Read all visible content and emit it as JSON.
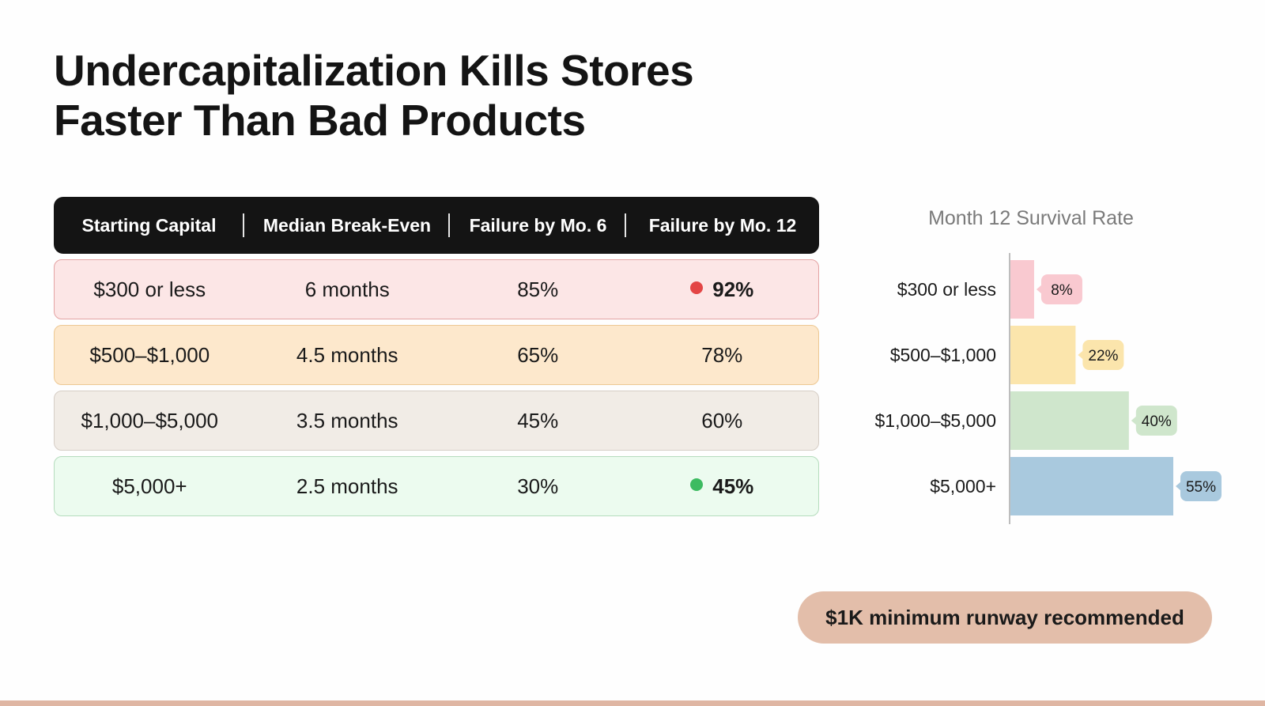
{
  "title_line1": "Undercapitalization Kills Stores",
  "title_line2": "Faster Than Bad Products",
  "table": {
    "headers": [
      "Starting Capital",
      "Median Break-Even",
      "Failure by Mo. 6",
      "Failure by Mo. 12"
    ],
    "rows": [
      {
        "capital": "$300 or less",
        "breakeven": "6 months",
        "fail6": "85%",
        "fail12": "92%",
        "marker": "red"
      },
      {
        "capital": "$500–$1,000",
        "breakeven": "4.5 months",
        "fail6": "65%",
        "fail12": "78%",
        "marker": ""
      },
      {
        "capital": "$1,000–$5,000",
        "breakeven": "3.5 months",
        "fail6": "45%",
        "fail12": "60%",
        "marker": ""
      },
      {
        "capital": "$5,000+",
        "breakeven": "2.5 months",
        "fail6": "30%",
        "fail12": "45%",
        "marker": "green"
      }
    ]
  },
  "colors": {
    "red_marker": "#e34545",
    "green_marker": "#3dbb61",
    "bars": [
      "#f9c9d0",
      "#fbe5ac",
      "#cfe6cc",
      "#a9c9de"
    ],
    "tags": [
      "#f9c9d0",
      "#fbe5ac",
      "#cfe6cc",
      "#a9c9de"
    ]
  },
  "chart_data": {
    "type": "bar",
    "orientation": "horizontal",
    "title": "Month 12 Survival Rate",
    "categories": [
      "$300 or less",
      "$500–$1,000",
      "$1,000–$5,000",
      "$5,000+"
    ],
    "values": [
      8,
      22,
      40,
      55
    ],
    "value_labels": [
      "8%",
      "22%",
      "40%",
      "55%"
    ],
    "xlim": [
      0,
      55
    ],
    "grid": false,
    "legend": "none"
  },
  "cta": "$1K minimum runway recommended"
}
